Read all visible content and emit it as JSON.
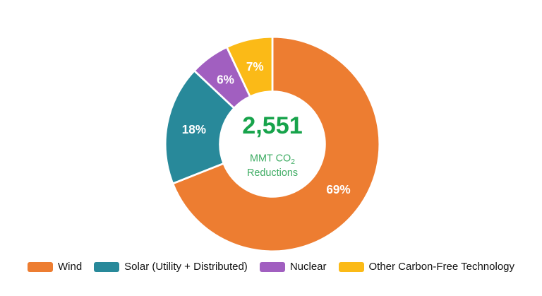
{
  "chart_data": {
    "type": "pie",
    "subtype": "donut",
    "title": "",
    "label_format": "percent",
    "direction": "clockwise",
    "start_angle_deg": 0,
    "inner_radius_ratio": 0.49,
    "legend_position": "bottom",
    "slices": [
      {
        "label": "Wind",
        "pct": 69,
        "color": "#ED7D31"
      },
      {
        "label": "Solar (Utility + Distributed)",
        "pct": 18,
        "color": "#28899A"
      },
      {
        "label": "Nuclear",
        "pct": 6,
        "color": "#A15FC0"
      },
      {
        "label": "Other Carbon-Free Technology",
        "pct": 7,
        "color": "#FBBA17"
      }
    ],
    "center": {
      "value": "2,551",
      "unit_prefix": "MMT CO",
      "unit_sub": "2",
      "line2": "Reductions",
      "value_color": "#17A34B",
      "unit_color": "#3EAC63"
    }
  }
}
